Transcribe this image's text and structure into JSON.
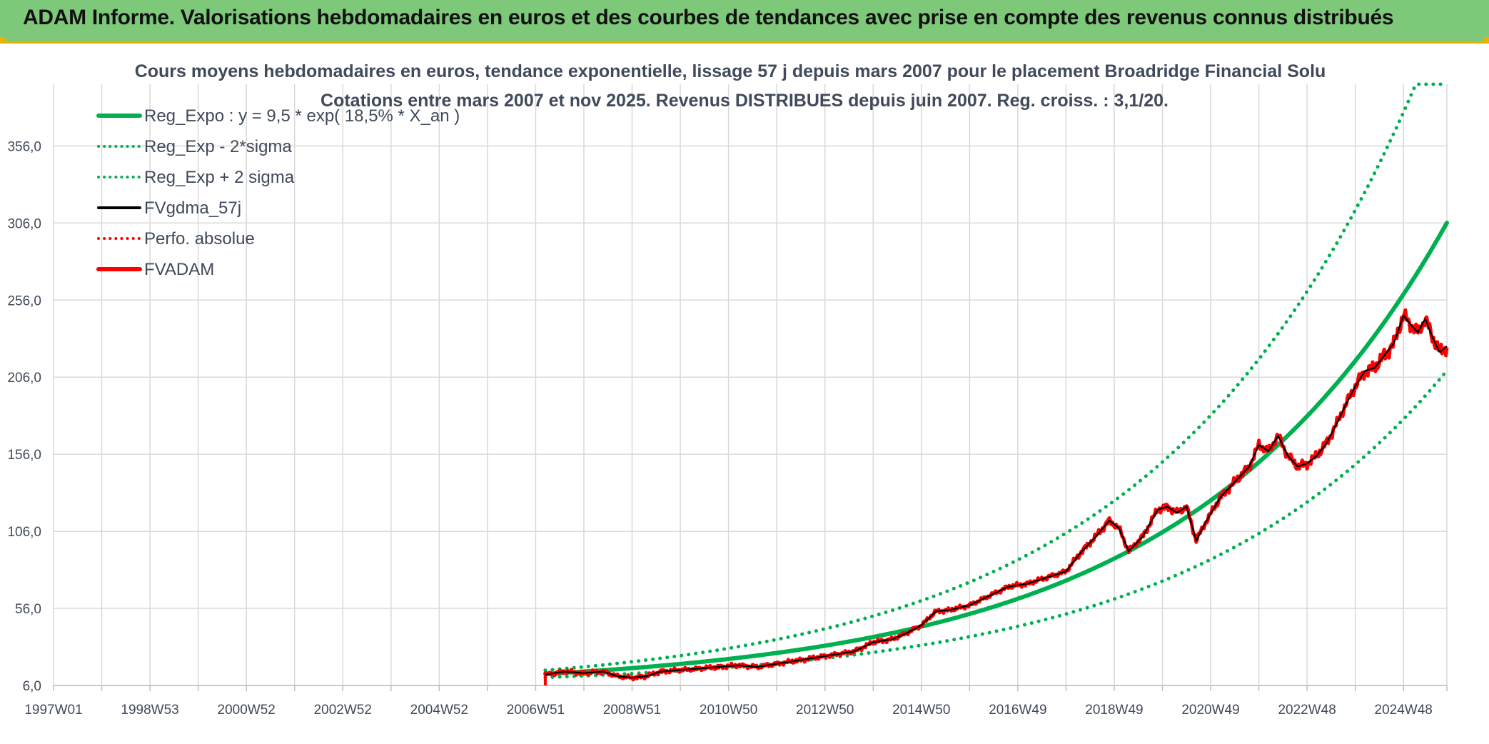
{
  "header": {
    "title": "ADAM Informe. Valorisations hebdomadaires en euros et des courbes de tendances avec prise en compte des revenus connus distribués"
  },
  "colors": {
    "header_bg": "#7ec87a",
    "accent": "#e9b100",
    "green": "#00b050",
    "red": "#ff0000",
    "black": "#000000",
    "grid": "#d9d9d9"
  },
  "chart_data": {
    "type": "line",
    "title": "Cours moyens hebdomadaires en euros, tendance exponentielle, lissage 57 j depuis mars 2007 pour le placement Broadridge Financial Solu",
    "subtitle": "Cotations entre mars 2007 et nov 2025. Revenus DISTRIBUES depuis juin 2007. Reg. croiss. : 3,1/20.",
    "xlabel": "",
    "ylabel": "",
    "xlim": [
      1997.0,
      2025.9
    ],
    "ylim": [
      6.0,
      396.0
    ],
    "x_ticks": [
      {
        "label": "1997W01",
        "x": 1997.0
      },
      {
        "label": "1998W53",
        "x": 1999.0
      },
      {
        "label": "2000W52",
        "x": 2001.0
      },
      {
        "label": "2002W52",
        "x": 2003.0
      },
      {
        "label": "2004W52",
        "x": 2005.0
      },
      {
        "label": "2006W51",
        "x": 2007.0
      },
      {
        "label": "2008W51",
        "x": 2009.0
      },
      {
        "label": "2010W50",
        "x": 2011.0
      },
      {
        "label": "2012W50",
        "x": 2013.0
      },
      {
        "label": "2014W50",
        "x": 2015.0
      },
      {
        "label": "2016W49",
        "x": 2017.0
      },
      {
        "label": "2018W49",
        "x": 2019.0
      },
      {
        "label": "2020W49",
        "x": 2021.0
      },
      {
        "label": "2022W48",
        "x": 2023.0
      },
      {
        "label": "2024W48",
        "x": 2025.0
      }
    ],
    "y_ticks": [
      "6,0",
      "56,0",
      "106,0",
      "156,0",
      "206,0",
      "256,0",
      "306,0",
      "356,0"
    ],
    "y_tick_values": [
      6,
      56,
      106,
      156,
      206,
      256,
      306,
      356
    ],
    "grid": true,
    "legend_position": "top-left",
    "regression": {
      "a": 9.5,
      "rate": 0.185,
      "start": 2007.2,
      "sigma_factor": 1.47
    },
    "series": [
      {
        "name": "Reg_Expo : y = 9,5 * exp( 18,5% *  X_an )",
        "color": "#00b050",
        "style": "solid-thick"
      },
      {
        "name": "Reg_Exp - 2*sigma",
        "color": "#00b050",
        "style": "dotted"
      },
      {
        "name": "Reg_Exp + 2 sigma",
        "color": "#00b050",
        "style": "dotted"
      },
      {
        "name": "FVgdma_57j",
        "color": "#000000",
        "style": "solid"
      },
      {
        "name": "Perfo. absolue",
        "color": "#ff0000",
        "style": "dotted"
      },
      {
        "name": "FVADAM",
        "color": "#ff0000",
        "style": "solid-thick"
      }
    ],
    "price_points": [
      [
        2007.2,
        13
      ],
      [
        2007.6,
        15
      ],
      [
        2008.0,
        14
      ],
      [
        2008.4,
        15
      ],
      [
        2008.7,
        12
      ],
      [
        2009.0,
        11
      ],
      [
        2009.3,
        12
      ],
      [
        2009.6,
        15
      ],
      [
        2010.0,
        16
      ],
      [
        2010.4,
        17
      ],
      [
        2010.8,
        18
      ],
      [
        2011.2,
        19
      ],
      [
        2011.6,
        18
      ],
      [
        2012.0,
        20
      ],
      [
        2012.4,
        22
      ],
      [
        2012.8,
        24
      ],
      [
        2013.2,
        26
      ],
      [
        2013.6,
        28
      ],
      [
        2014.0,
        34
      ],
      [
        2014.4,
        36
      ],
      [
        2014.7,
        40
      ],
      [
        2015.0,
        45
      ],
      [
        2015.3,
        54
      ],
      [
        2015.6,
        55
      ],
      [
        2016.0,
        58
      ],
      [
        2016.4,
        64
      ],
      [
        2016.8,
        70
      ],
      [
        2017.2,
        72
      ],
      [
        2017.6,
        76
      ],
      [
        2018.0,
        80
      ],
      [
        2018.3,
        92
      ],
      [
        2018.6,
        102
      ],
      [
        2018.9,
        113
      ],
      [
        2019.1,
        108
      ],
      [
        2019.3,
        93
      ],
      [
        2019.6,
        103
      ],
      [
        2019.9,
        120
      ],
      [
        2020.1,
        122
      ],
      [
        2020.3,
        118
      ],
      [
        2020.5,
        122
      ],
      [
        2020.7,
        100
      ],
      [
        2020.9,
        112
      ],
      [
        2021.2,
        128
      ],
      [
        2021.5,
        138
      ],
      [
        2021.8,
        148
      ],
      [
        2022.0,
        162
      ],
      [
        2022.2,
        158
      ],
      [
        2022.4,
        168
      ],
      [
        2022.6,
        155
      ],
      [
        2022.8,
        148
      ],
      [
        2023.0,
        150
      ],
      [
        2023.2,
        155
      ],
      [
        2023.4,
        163
      ],
      [
        2023.6,
        175
      ],
      [
        2023.8,
        188
      ],
      [
        2024.0,
        200
      ],
      [
        2024.2,
        210
      ],
      [
        2024.4,
        212
      ],
      [
        2024.6,
        220
      ],
      [
        2024.8,
        228
      ],
      [
        2025.0,
        246
      ],
      [
        2025.15,
        240
      ],
      [
        2025.3,
        235
      ],
      [
        2025.45,
        244
      ],
      [
        2025.6,
        232
      ],
      [
        2025.75,
        222
      ],
      [
        2025.9,
        226
      ]
    ]
  }
}
